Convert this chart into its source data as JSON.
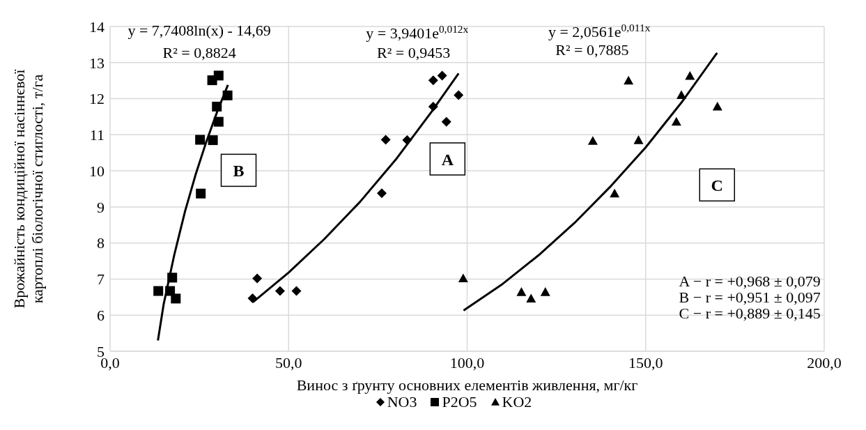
{
  "chart_data": {
    "type": "scatter",
    "xlabel": "Винос з ґрунту основних елементів живлення, мг/кг",
    "ylabel": "Врожайність кондиційної насіннєвої картоплі біологічної стиглості, т/га",
    "xlim": [
      0,
      200
    ],
    "xticks": [
      {
        "value": 0,
        "label": "0,0"
      },
      {
        "value": 50,
        "label": "50,0"
      },
      {
        "value": 100,
        "label": "100,0"
      },
      {
        "value": 150,
        "label": "150,0"
      },
      {
        "value": 200,
        "label": "200,0"
      }
    ],
    "ylim": [
      5,
      14
    ],
    "yticks": [
      5,
      6,
      7,
      8,
      9,
      10,
      11,
      12,
      13,
      14
    ],
    "grid": true,
    "legend": "bottom",
    "series": [
      {
        "name": "NO3",
        "color": "#000000",
        "marker": "diamond",
        "x": [
          39.9,
          41.2,
          47.6,
          52.2,
          76.1,
          77.2,
          83.2,
          90.5,
          90.5,
          93.0,
          94.2,
          97.6
        ],
        "values": [
          6.47,
          7.02,
          6.67,
          6.67,
          9.38,
          10.86,
          10.85,
          11.78,
          12.51,
          12.64,
          11.36,
          12.1
        ]
      },
      {
        "name": "P2O5",
        "color": "#000000",
        "marker": "square",
        "x": [
          13.5,
          16.8,
          17.4,
          18.4,
          25.4,
          25.2,
          28.8,
          28.6,
          30.4,
          29.9,
          30.4,
          32.9
        ],
        "values": [
          6.67,
          6.67,
          7.04,
          6.46,
          9.37,
          10.86,
          10.85,
          12.51,
          12.64,
          11.78,
          11.36,
          12.09
        ]
      },
      {
        "name": "KO2",
        "color": "#000000",
        "marker": "triangle",
        "x": [
          98.9,
          115.2,
          117.9,
          121.9,
          135.2,
          141.3,
          145.2,
          148.0,
          158.6,
          160.0,
          162.4,
          170.1
        ],
        "values": [
          7.02,
          6.64,
          6.46,
          6.64,
          10.83,
          9.37,
          12.5,
          10.85,
          11.36,
          12.1,
          12.63,
          11.78
        ]
      },
      {
        "type": "line",
        "color": "#000000",
        "marker": "none",
        "x": [
          13.4,
          15,
          18,
          21,
          24,
          27,
          30,
          33
        ],
        "values": [
          5.3,
          6.3,
          7.68,
          8.88,
          9.91,
          10.82,
          11.64,
          12.38
        ]
      },
      {
        "type": "line",
        "color": "#000000",
        "marker": "none",
        "x": [
          40,
          50,
          60,
          70,
          80,
          90,
          97.6
        ],
        "values": [
          6.36,
          7.18,
          8.11,
          9.14,
          10.31,
          11.63,
          12.7
        ]
      },
      {
        "type": "line",
        "color": "#000000",
        "marker": "none",
        "x": [
          99,
          110,
          120,
          130,
          140,
          150,
          160,
          170
        ],
        "values": [
          6.13,
          6.87,
          7.66,
          8.55,
          9.55,
          10.65,
          11.89,
          13.27
        ]
      }
    ],
    "annotations": [
      "y = 7,7408ln(x) - 14,69",
      "R² = 0,8824",
      "y = 3,9401e$^{0,012x}$",
      "R² = 0,9453",
      "y = 2,0561e$^{0,011x}$",
      "R² = 0,7885",
      "B",
      "A",
      "C",
      "A − r = +0,968 ± 0,079",
      "B − r = +0,951 ± 0,097",
      "C − r = +0,889 ± 0,145"
    ]
  }
}
